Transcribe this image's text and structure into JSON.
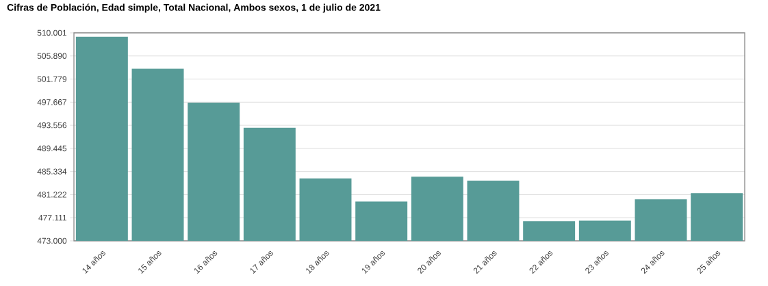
{
  "chart_data": {
    "type": "bar",
    "title": "Cifras de Población, Edad simple, Total Nacional, Ambos sexos, 1 de julio de 2021",
    "categories": [
      "14 años",
      "15 años",
      "16 años",
      "17 años",
      "18 años",
      "19 años",
      "20 años",
      "21 años",
      "22 años",
      "23 años",
      "24 años",
      "25 años"
    ],
    "values": [
      509300,
      503600,
      497600,
      493100,
      484100,
      480000,
      484400,
      483700,
      476500,
      476600,
      480400,
      481500
    ],
    "color": "#579b97",
    "ylim": [
      473000,
      510001
    ],
    "yticks": [
      {
        "value": 473000,
        "label": "473.000"
      },
      {
        "value": 477111,
        "label": "477.111"
      },
      {
        "value": 481222,
        "label": "481.222"
      },
      {
        "value": 485334,
        "label": "485.334"
      },
      {
        "value": 489445,
        "label": "489.445"
      },
      {
        "value": 493556,
        "label": "493.556"
      },
      {
        "value": 497667,
        "label": "497.667"
      },
      {
        "value": 501779,
        "label": "501.779"
      },
      {
        "value": 505890,
        "label": "505.890"
      },
      {
        "value": 510001,
        "label": "510.001"
      }
    ],
    "grid": "y"
  }
}
